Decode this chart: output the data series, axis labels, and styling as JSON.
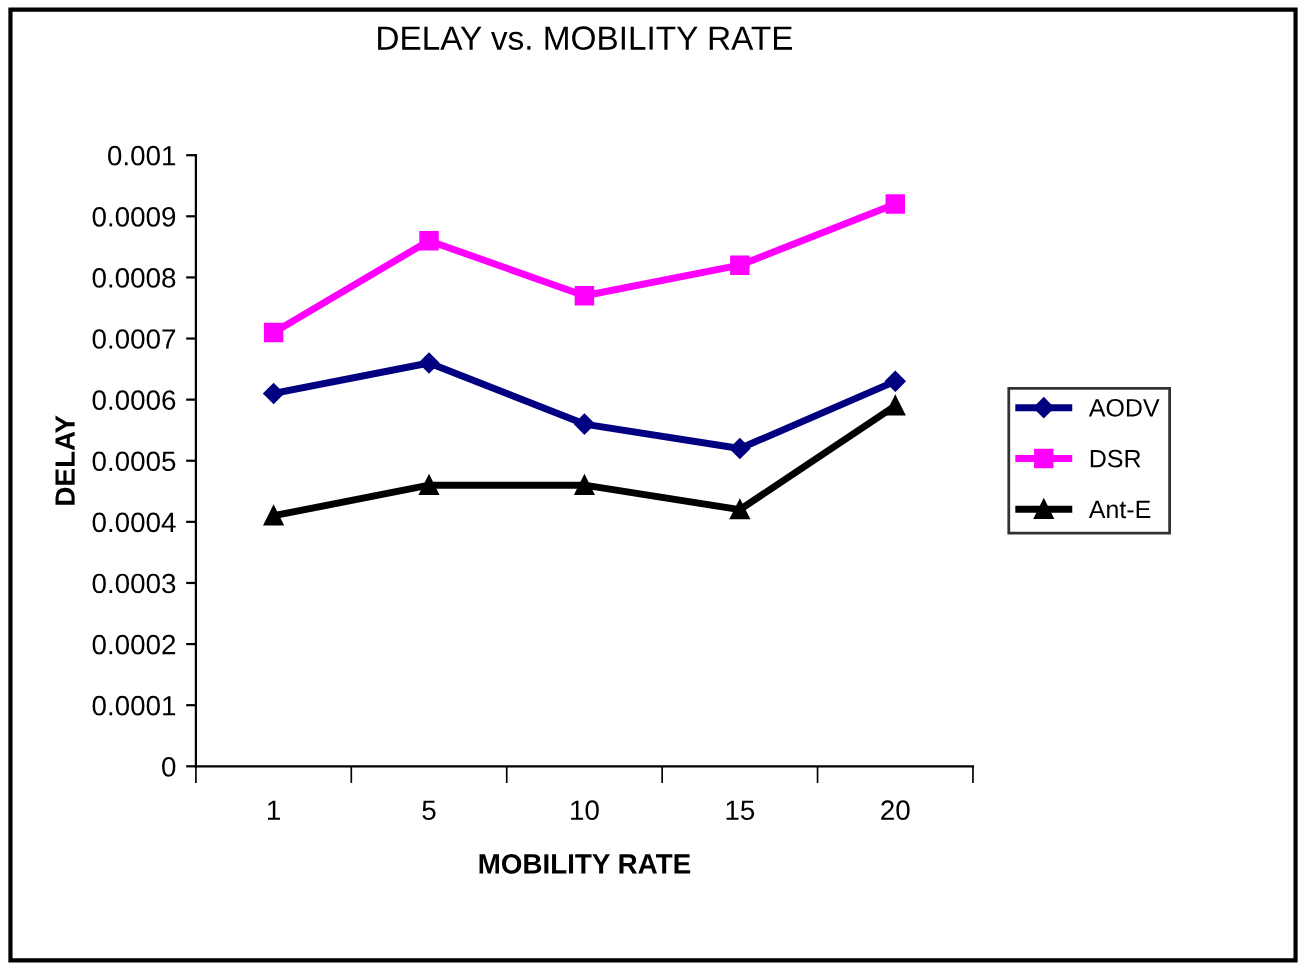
{
  "chart_data": {
    "type": "line",
    "title": "DELAY vs. MOBILITY RATE",
    "xlabel": "MOBILITY RATE",
    "ylabel": "DELAY",
    "categories": [
      "1",
      "5",
      "10",
      "15",
      "20"
    ],
    "series": [
      {
        "name": "AODV",
        "color": "#000080",
        "marker": "diamond",
        "values": [
          0.00061,
          0.00066,
          0.00056,
          0.00052,
          0.00063
        ]
      },
      {
        "name": "DSR",
        "color": "#ff00ff",
        "marker": "square",
        "values": [
          0.00071,
          0.00086,
          0.00077,
          0.00082,
          0.00092
        ]
      },
      {
        "name": "Ant-E",
        "color": "#000000",
        "marker": "triangle",
        "values": [
          0.00041,
          0.00046,
          0.00046,
          0.00042,
          0.00059
        ]
      }
    ],
    "ylim": [
      0,
      0.001
    ],
    "yticks": [
      0,
      0.0001,
      0.0002,
      0.0003,
      0.0004,
      0.0005,
      0.0006,
      0.0007,
      0.0008,
      0.0009,
      0.001
    ],
    "grid": false,
    "legend": "right",
    "line_style": "solid"
  }
}
